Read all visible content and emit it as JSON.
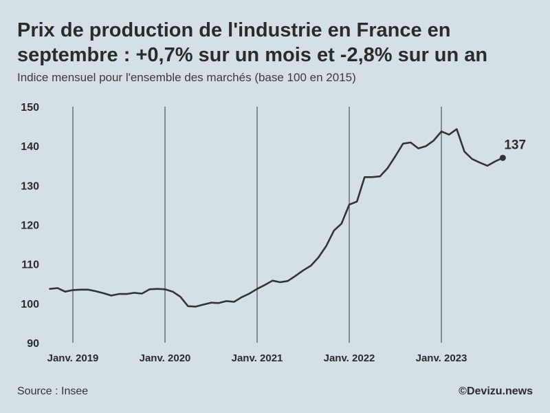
{
  "header": {
    "title": "Prix de production de l'industrie en France en septembre : +0,7% sur un mois et -2,8% sur un an",
    "subtitle": "Indice mensuel pour l'ensemble des marchés (base 100 en 2015)"
  },
  "footer": {
    "source": "Source : Insee",
    "credit": "©Devizu.news"
  },
  "colors": {
    "background": "#d5dfe6",
    "line": "#333333",
    "grid": "#333333",
    "text": "#2b2b2b"
  },
  "chart_data": {
    "type": "line",
    "title": "Prix de production de l'industrie en France en septembre : +0,7% sur un mois et -2,8% sur un an",
    "subtitle": "Indice mensuel pour l'ensemble des marchés (base 100 en 2015)",
    "xlabel": "",
    "ylabel": "",
    "ylim": [
      90,
      150
    ],
    "yticks": [
      90,
      100,
      110,
      120,
      130,
      140,
      150
    ],
    "xticks": [
      {
        "label": "Janv. 2019",
        "date": "2019-01"
      },
      {
        "label": "Janv. 2020",
        "date": "2020-01"
      },
      {
        "label": "Janv. 2021",
        "date": "2021-01"
      },
      {
        "label": "Janv. 2022",
        "date": "2022-01"
      },
      {
        "label": "Janv. 2023",
        "date": "2023-01"
      }
    ],
    "grid": "vertical lines at each January",
    "series": [
      {
        "dates": [
          "2018-10",
          "2018-11",
          "2018-12",
          "2019-01",
          "2019-02",
          "2019-03",
          "2019-04",
          "2019-05",
          "2019-06",
          "2019-07",
          "2019-08",
          "2019-09",
          "2019-10",
          "2019-11",
          "2019-12",
          "2020-01",
          "2020-02",
          "2020-03",
          "2020-04",
          "2020-05",
          "2020-06",
          "2020-07",
          "2020-08",
          "2020-09",
          "2020-10",
          "2020-11",
          "2020-12",
          "2021-01",
          "2021-02",
          "2021-03",
          "2021-04",
          "2021-05",
          "2021-06",
          "2021-07",
          "2021-08",
          "2021-09",
          "2021-10",
          "2021-11",
          "2021-12",
          "2022-01",
          "2022-02",
          "2022-03",
          "2022-04",
          "2022-05",
          "2022-06",
          "2022-07",
          "2022-08",
          "2022-09",
          "2022-10",
          "2022-11",
          "2022-12",
          "2023-01",
          "2023-02",
          "2023-03",
          "2023-04",
          "2023-05",
          "2023-06",
          "2023-07",
          "2023-08",
          "2023-09"
        ],
        "values": [
          103.7,
          103.9,
          103.0,
          103.4,
          103.5,
          103.5,
          103.1,
          102.6,
          102.0,
          102.4,
          102.4,
          102.7,
          102.5,
          103.6,
          103.7,
          103.6,
          103.0,
          101.7,
          99.3,
          99.2,
          99.7,
          100.2,
          100.1,
          100.6,
          100.4,
          101.6,
          102.5,
          103.7,
          104.7,
          105.8,
          105.4,
          105.7,
          107.0,
          108.4,
          109.6,
          111.7,
          114.6,
          118.5,
          120.3,
          125.1,
          125.9,
          132.1,
          132.1,
          132.3,
          134.4,
          137.4,
          140.6,
          140.9,
          139.4,
          140.0,
          141.4,
          143.7,
          142.9,
          144.3,
          138.6,
          136.7,
          135.8,
          135.0,
          136.1,
          137.0
        ]
      }
    ],
    "annotations": [
      {
        "date": "2023-09",
        "value": 137,
        "label": "137"
      }
    ]
  }
}
